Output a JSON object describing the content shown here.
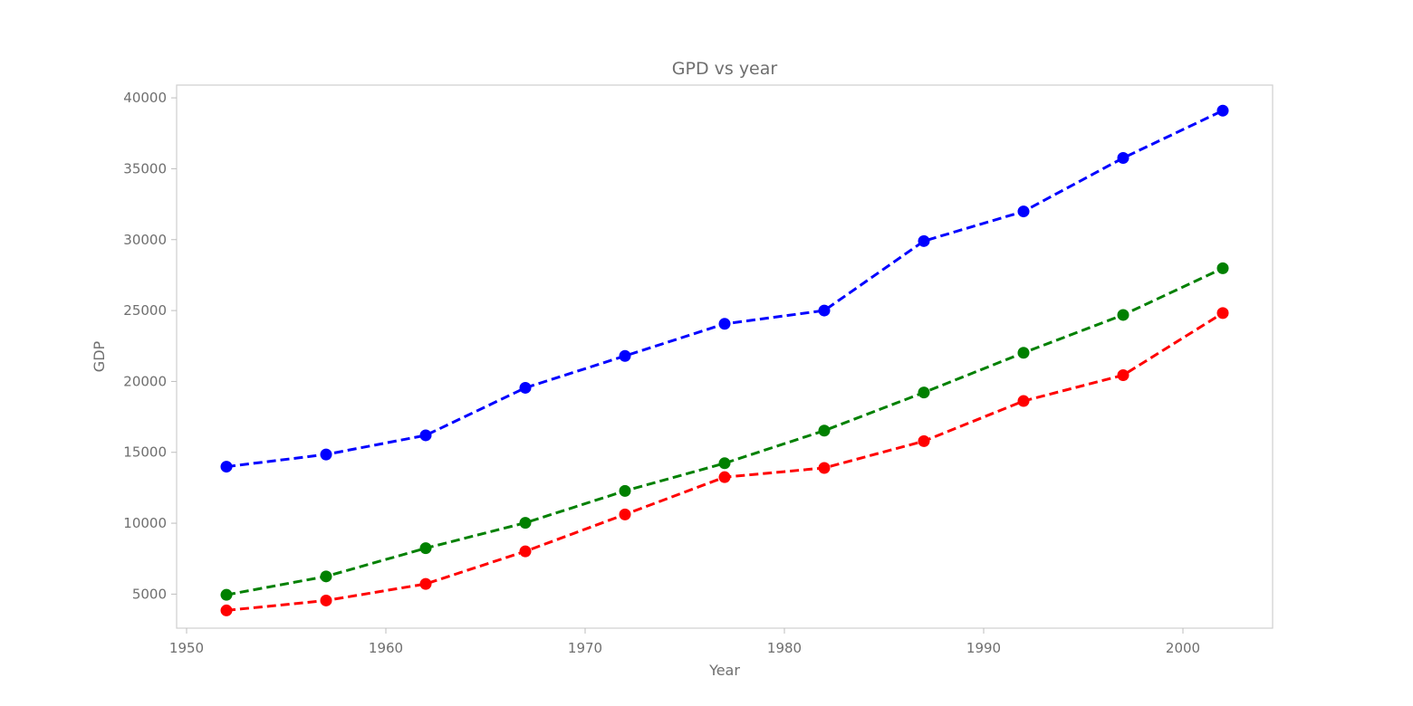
{
  "chart_data": {
    "type": "line",
    "title": "GPD vs year",
    "xlabel": "Year",
    "ylabel": "GDP",
    "x": [
      1952,
      1957,
      1962,
      1967,
      1972,
      1977,
      1982,
      1987,
      1992,
      1997,
      2002
    ],
    "xlim": [
      1949.5,
      2004.5
    ],
    "ylim": [
      2600,
      40900
    ],
    "xticks": [
      1950,
      1960,
      1970,
      1980,
      1990,
      2000
    ],
    "yticks": [
      5000,
      10000,
      15000,
      20000,
      25000,
      30000,
      35000,
      40000
    ],
    "grid": false,
    "legend": "none",
    "series": [
      {
        "color": "#0000ff",
        "line_style": "dashed",
        "marker": "circle",
        "values": [
          13990,
          14850,
          16200,
          19550,
          21800,
          24060,
          25000,
          29900,
          31990,
          35760,
          39100
        ]
      },
      {
        "color": "#008000",
        "line_style": "dashed",
        "marker": "circle",
        "values": [
          4950,
          6250,
          8240,
          10030,
          12280,
          14230,
          16530,
          19220,
          22020,
          24690,
          27980
        ]
      },
      {
        "color": "#ff0000",
        "line_style": "dashed",
        "marker": "circle",
        "values": [
          3850,
          4550,
          5720,
          8020,
          10620,
          13250,
          13900,
          15790,
          18620,
          20440,
          24820
        ]
      }
    ]
  }
}
